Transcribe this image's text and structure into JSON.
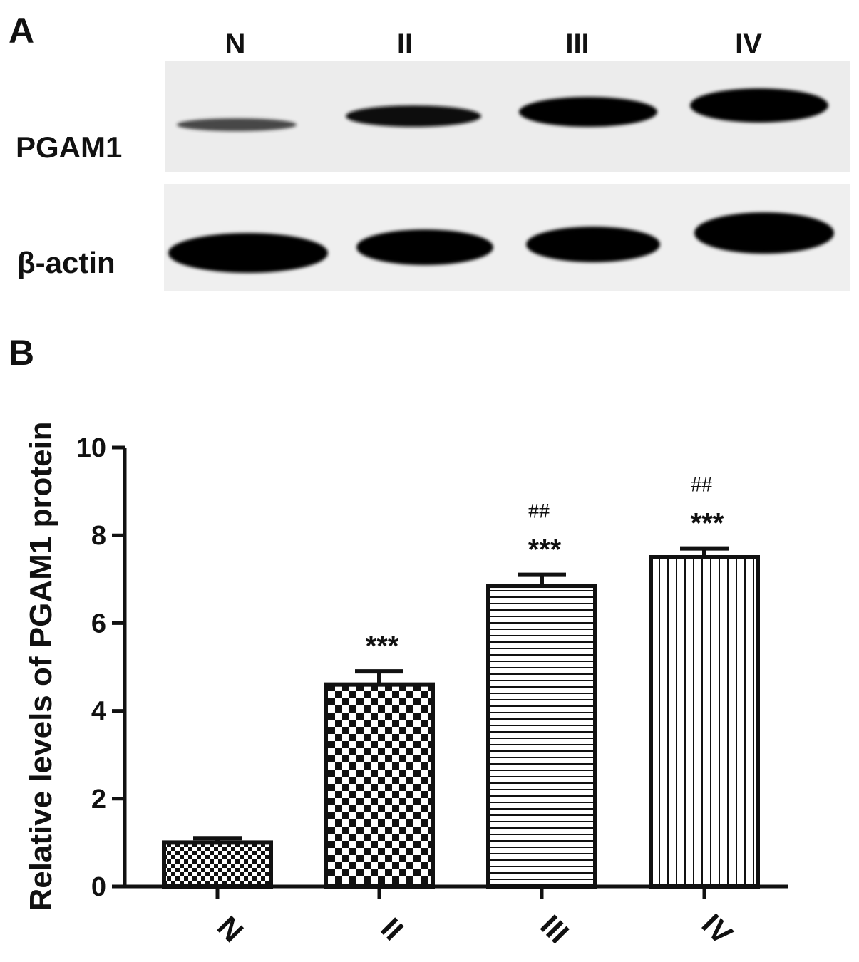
{
  "panel_a": {
    "letter": "A",
    "lanes": [
      "N",
      "II",
      "III",
      "IV"
    ],
    "rows": [
      "PGAM1",
      "β-actin"
    ]
  },
  "panel_b": {
    "letter": "B"
  },
  "chart_data": {
    "type": "bar",
    "categories": [
      "N",
      "II",
      "III",
      "IV"
    ],
    "values": [
      1.0,
      4.6,
      6.85,
      7.5
    ],
    "errors": [
      0.1,
      0.3,
      0.25,
      0.2
    ],
    "ylabel": "Relative levels of PGAM1 protein",
    "xlabel": "",
    "ylim": [
      0,
      10
    ],
    "yticks": [
      "0",
      "2",
      "4",
      "6",
      "8",
      "10"
    ],
    "significance_star": [
      "",
      "***",
      "***",
      "***"
    ],
    "significance_hash": [
      "",
      "",
      "##",
      "##"
    ],
    "fill_patterns": [
      "small-checker",
      "large-checker",
      "horizontal-lines",
      "vertical-lines"
    ],
    "colors": {
      "bar_edge": "#111111",
      "pattern": "#111111",
      "background": "#ffffff"
    }
  }
}
